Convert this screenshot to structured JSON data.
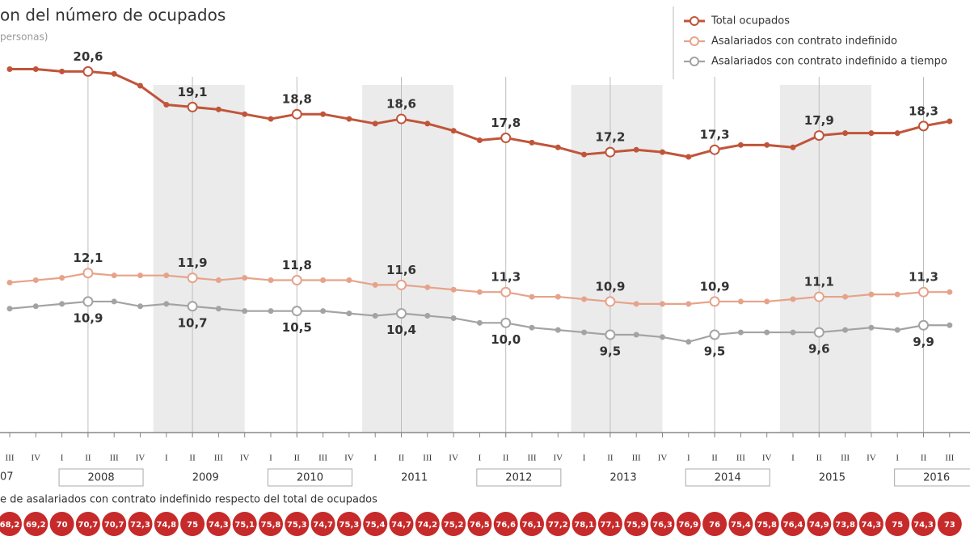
{
  "chart_data": {
    "type": "line",
    "title": "on del número de ocupados",
    "subtitle": "personas)",
    "categories": [
      "III",
      "IV",
      "I",
      "II",
      "III",
      "IV",
      "I",
      "II",
      "III",
      "IV",
      "I",
      "II",
      "III",
      "IV",
      "I",
      "II",
      "III",
      "IV",
      "I",
      "II",
      "III",
      "IV",
      "I",
      "II",
      "III",
      "IV",
      "I",
      "II",
      "III",
      "IV",
      "I",
      "II",
      "III",
      "IV",
      "I",
      "II",
      "III"
    ],
    "years": [
      "07",
      "2008",
      "2009",
      "2010",
      "2011",
      "2012",
      "2013",
      "2014",
      "2015",
      "2016"
    ],
    "ylim": [
      8,
      21.5
    ],
    "series": [
      {
        "name": "Total ocupados",
        "color": "#c0553a",
        "values": [
          20.7,
          20.7,
          20.6,
          20.6,
          20.5,
          20.0,
          19.2,
          19.1,
          19.0,
          18.8,
          18.6,
          18.8,
          18.8,
          18.6,
          18.4,
          18.6,
          18.4,
          18.1,
          17.7,
          17.8,
          17.6,
          17.4,
          17.1,
          17.2,
          17.3,
          17.2,
          17.0,
          17.3,
          17.5,
          17.5,
          17.4,
          17.9,
          18.0,
          18.0,
          18.0,
          18.3,
          18.5
        ],
        "value_labels": [
          null,
          null,
          null,
          "20,6",
          null,
          null,
          null,
          "19,1",
          null,
          null,
          null,
          "18,8",
          null,
          null,
          null,
          "18,6",
          null,
          null,
          null,
          "17,8",
          null,
          null,
          null,
          "17,2",
          null,
          null,
          null,
          "17,3",
          null,
          null,
          null,
          "17,9",
          null,
          null,
          null,
          "18,3",
          null
        ]
      },
      {
        "name": "Asalariados con contrato indefinido",
        "color": "#e6a38a",
        "values": [
          11.7,
          11.8,
          11.9,
          12.1,
          12.0,
          12.0,
          12.0,
          11.9,
          11.8,
          11.9,
          11.8,
          11.8,
          11.8,
          11.8,
          11.6,
          11.6,
          11.5,
          11.4,
          11.3,
          11.3,
          11.1,
          11.1,
          11.0,
          10.9,
          10.8,
          10.8,
          10.8,
          10.9,
          10.9,
          10.9,
          11.0,
          11.1,
          11.1,
          11.2,
          11.2,
          11.3,
          11.3
        ],
        "value_labels": [
          null,
          null,
          null,
          "12,1",
          null,
          null,
          null,
          "11,9",
          null,
          null,
          null,
          "11,8",
          null,
          null,
          null,
          "11,6",
          null,
          null,
          null,
          "11,3",
          null,
          null,
          null,
          "10,9",
          null,
          null,
          null,
          "10,9",
          null,
          null,
          null,
          "11,1",
          null,
          null,
          null,
          "11,3",
          null
        ]
      },
      {
        "name": "Asalariados con contrato indefinido a tiempo",
        "color": "#a3a3a3",
        "values": [
          10.6,
          10.7,
          10.8,
          10.9,
          10.9,
          10.7,
          10.8,
          10.7,
          10.6,
          10.5,
          10.5,
          10.5,
          10.5,
          10.4,
          10.3,
          10.4,
          10.3,
          10.2,
          10.0,
          10.0,
          9.8,
          9.7,
          9.6,
          9.5,
          9.5,
          9.4,
          9.2,
          9.5,
          9.6,
          9.6,
          9.6,
          9.6,
          9.7,
          9.8,
          9.7,
          9.9,
          9.9
        ],
        "value_labels": [
          null,
          null,
          null,
          "10,9",
          null,
          null,
          null,
          "10,7",
          null,
          null,
          null,
          "10,5",
          null,
          null,
          null,
          "10,4",
          null,
          null,
          null,
          "10,0",
          null,
          null,
          null,
          "9,5",
          null,
          null,
          null,
          "9,5",
          null,
          null,
          null,
          "9,6",
          null,
          null,
          null,
          "9,9",
          null
        ]
      }
    ],
    "percent_row": {
      "label": "e de asalariados con contrato indefinido respecto del total de ocupados",
      "color": "#c62a2a",
      "values": [
        68.2,
        69.2,
        70,
        70.7,
        70.7,
        72.3,
        74.8,
        75,
        74.3,
        75.1,
        75.8,
        75.3,
        74.7,
        75.3,
        75.4,
        74.7,
        74.2,
        75.2,
        76.5,
        76.6,
        76.1,
        77.2,
        78.1,
        77.1,
        75.9,
        76.3,
        76.9,
        76,
        75.4,
        75.8,
        76.4,
        74.9,
        73.8,
        74.3,
        75,
        74.3,
        73
      ],
      "value_labels": [
        "68,2",
        "69,2",
        "70",
        "70,7",
        "70,7",
        "72,3",
        "74,8",
        "75",
        "74,3",
        "75,1",
        "75,8",
        "75,3",
        "74,7",
        "75,3",
        "75,4",
        "74,7",
        "74,2",
        "75,2",
        "76,5",
        "76,6",
        "76,1",
        "77,2",
        "78,1",
        "77,1",
        "75,9",
        "76,3",
        "76,9",
        "76",
        "75,4",
        "75,8",
        "76,4",
        "74,9",
        "73,8",
        "74,3",
        "75",
        "74,3",
        "73"
      ]
    }
  }
}
